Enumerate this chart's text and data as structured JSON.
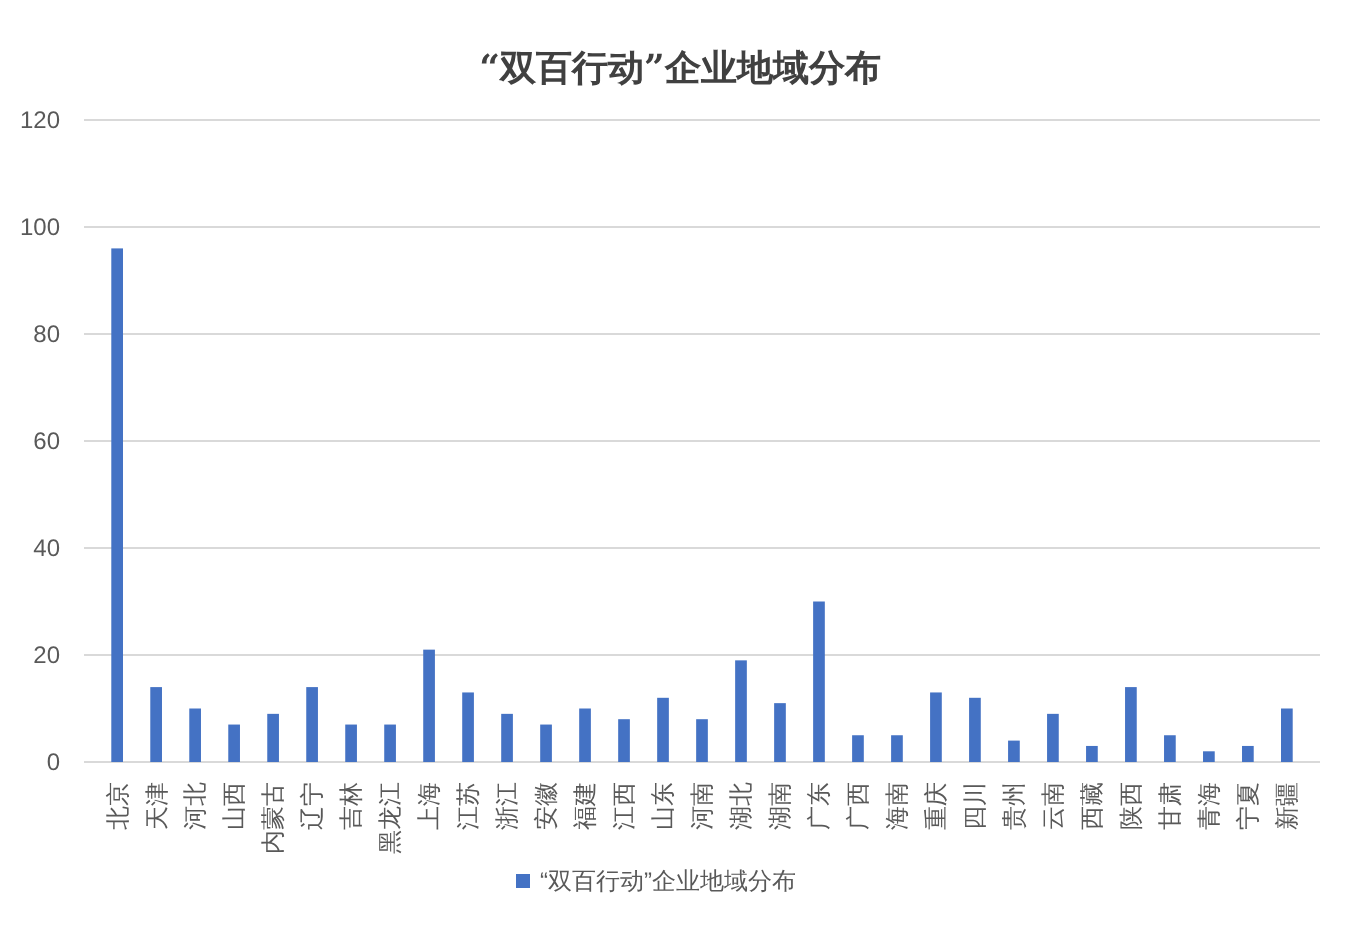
{
  "chart_data": {
    "type": "bar",
    "title": "“双百行动”企业地域分布",
    "categories": [
      "北京",
      "天津",
      "河北",
      "山西",
      "内蒙古",
      "辽宁",
      "吉林",
      "黑龙江",
      "上海",
      "江苏",
      "浙江",
      "安徽",
      "福建",
      "江西",
      "山东",
      "河南",
      "湖北",
      "湖南",
      "广东",
      "广西",
      "海南",
      "重庆",
      "四川",
      "贵州",
      "云南",
      "西藏",
      "陕西",
      "甘肃",
      "青海",
      "宁夏",
      "新疆"
    ],
    "series": [
      {
        "name": "“双百行动”企业地域分布",
        "color": "#4472c4",
        "values": [
          96,
          14,
          10,
          7,
          9,
          14,
          7,
          7,
          21,
          13,
          9,
          7,
          10,
          8,
          12,
          8,
          19,
          11,
          30,
          5,
          5,
          13,
          12,
          4,
          9,
          3,
          14,
          5,
          2,
          3,
          10
        ]
      }
    ],
    "ylim": [
      0,
      120
    ],
    "yticks": [
      0,
      20,
      40,
      60,
      80,
      100,
      120
    ],
    "grid": "y",
    "legend": "bottom"
  }
}
